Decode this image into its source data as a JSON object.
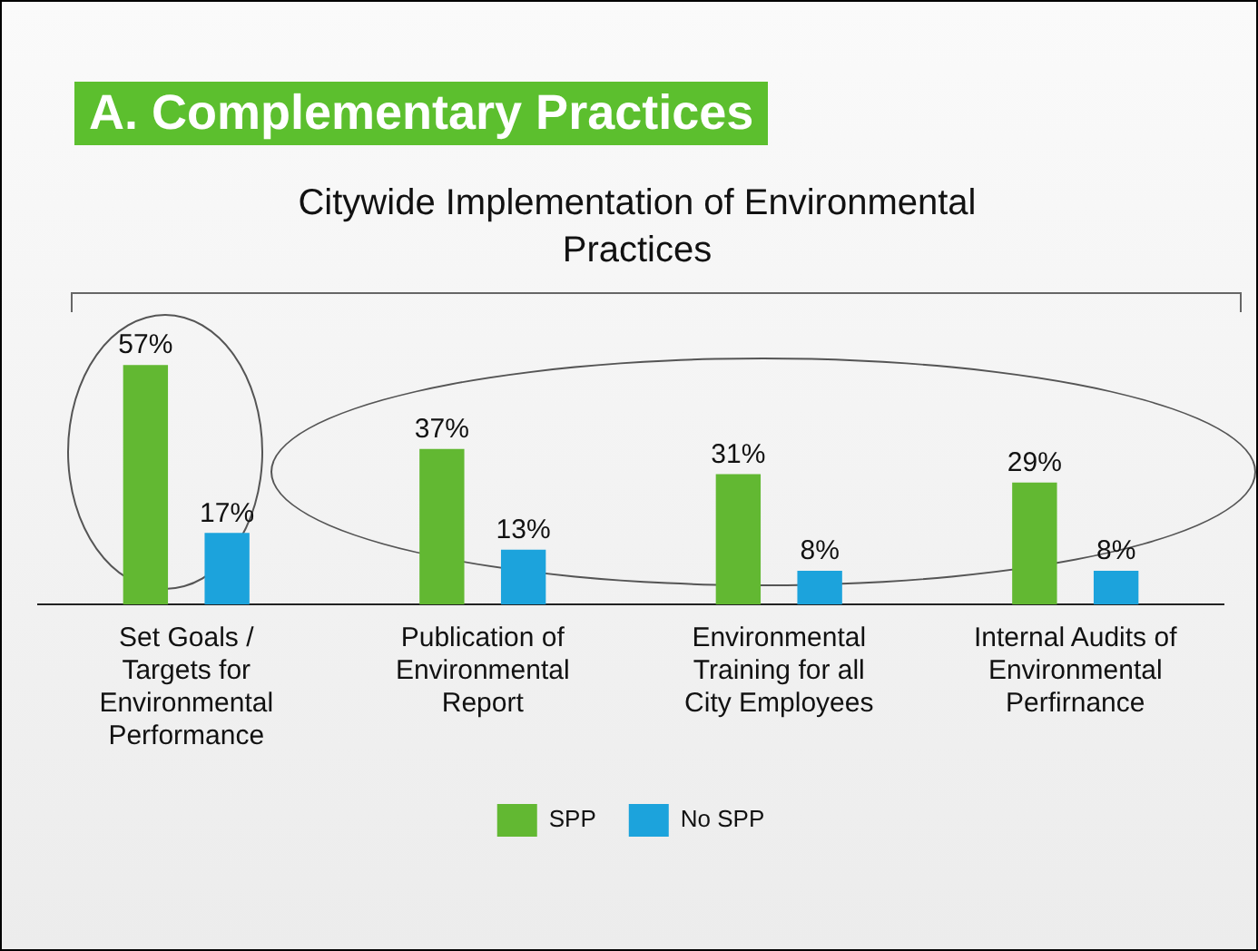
{
  "chart_data": {
    "type": "bar",
    "title": "A. Complementary Practices",
    "subtitle": "Citywide Implementation of Environmental Practices",
    "categories": [
      "Set Goals / Targets for Environmental Performance",
      "Publication of Environmental Report",
      "Environmental Training for all City Employees",
      "Internal Audits of Environmental Perfirnance"
    ],
    "series": [
      {
        "name": "SPP",
        "color": "#62b832",
        "values": [
          57,
          37,
          31,
          29
        ],
        "value_labels": [
          "57%",
          "37%",
          "31%",
          "29%"
        ]
      },
      {
        "name": "No SPP",
        "color": "#1ca3dc",
        "values": [
          17,
          13,
          8,
          8
        ],
        "value_labels": [
          "17%",
          "13%",
          "8%",
          "8%"
        ]
      }
    ],
    "legend": "bottom",
    "grid": false
  }
}
